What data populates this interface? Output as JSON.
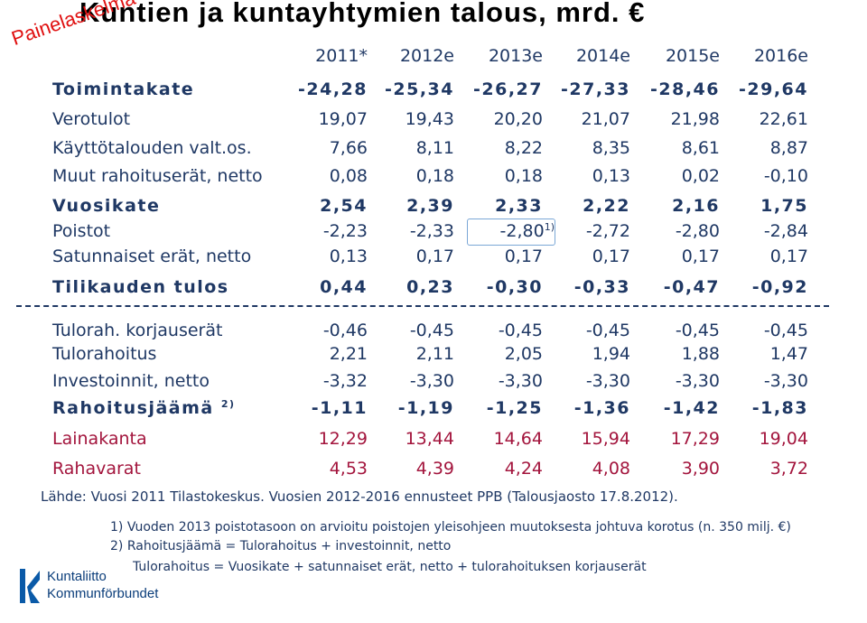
{
  "header": {
    "title": "Kuntien ja kuntayhtymien talous, mrd. €",
    "stamp": "Painelaskelma - ei ennuste"
  },
  "table": {
    "columns": [
      "2011*",
      "2012e",
      "2013e",
      "2014e",
      "2015e",
      "2016e"
    ],
    "rows": [
      {
        "label": "Toimintakate",
        "cells": [
          "-24,28",
          "-25,34",
          "-26,27",
          "-27,33",
          "-28,46",
          "-29,64"
        ]
      },
      {
        "label": "Verotulot",
        "cells": [
          "19,07",
          "19,43",
          "20,20",
          "21,07",
          "21,98",
          "22,61"
        ]
      },
      {
        "label": "Käyttötalouden valt.os.",
        "cells": [
          "7,66",
          "8,11",
          "8,22",
          "8,35",
          "8,61",
          "8,87"
        ]
      },
      {
        "label": "Muut rahoituserät, netto",
        "cells": [
          "0,08",
          "0,18",
          "0,18",
          "0,13",
          "0,02",
          "-0,10"
        ]
      },
      {
        "label": "Vuosikate",
        "cells": [
          "2,54",
          "2,39",
          "2,33",
          "2,22",
          "2,16",
          "1,75"
        ]
      },
      {
        "label": "Poistot",
        "cells": [
          "-2,23",
          "-2,33",
          {
            "text": "-2,80",
            "note": "1)"
          },
          "-2,72",
          "-2,80",
          "-2,84"
        ]
      },
      {
        "label": "Satunnaiset erät, netto",
        "cells": [
          "0,13",
          "0,17",
          "0,17",
          "0,17",
          "0,17",
          "0,17"
        ]
      },
      {
        "label": "Tilikauden tulos",
        "cells": [
          "0,44",
          "0,23",
          "-0,30",
          "-0,33",
          "-0,47",
          "-0,92"
        ]
      },
      {
        "label": "Tulorah. korjauserät",
        "cells": [
          "-0,46",
          "-0,45",
          "-0,45",
          "-0,45",
          "-0,45",
          "-0,45"
        ]
      },
      {
        "label": "Tulorahoitus",
        "cells": [
          "2,21",
          "2,11",
          "2,05",
          "1,94",
          "1,88",
          "1,47"
        ]
      },
      {
        "label": "Investoinnit, netto",
        "cells": [
          "-3,32",
          "-3,30",
          "-3,30",
          "-3,30",
          "-3,30",
          "-3,30"
        ]
      },
      {
        "label": "Rahoitusjäämä",
        "note": "2)",
        "cells": [
          "-1,11",
          "-1,19",
          "-1,25",
          "-1,36",
          "-1,42",
          "-1,83"
        ]
      },
      {
        "label": "Lainakanta",
        "cells": [
          "12,29",
          "13,44",
          "14,64",
          "15,94",
          "17,29",
          "19,04"
        ]
      },
      {
        "label": "Rahavarat",
        "cells": [
          "4,53",
          "4,39",
          "4,24",
          "4,08",
          "3,90",
          "3,72"
        ]
      }
    ]
  },
  "footer": {
    "source": "Lähde: Vuosi 2011 Tilastokeskus. Vuosien 2012-2016 ennusteet PPB (Talousjaosto 17.8.2012).",
    "notes": [
      "1) Vuoden 2013 poistotasoon on arvioitu poistojen yleisohjeen muutoksesta johtuva korotus (n. 350 milj. €)",
      "2) Rahoitusjäämä = Tulorahoitus + investoinnit, netto",
      "Tulorahoitus = Vuosikate + satunnaiset erät, netto + tulorahoituksen korjauserät"
    ],
    "logo": [
      "Kuntaliitto",
      "Kommunförbundet"
    ]
  }
}
